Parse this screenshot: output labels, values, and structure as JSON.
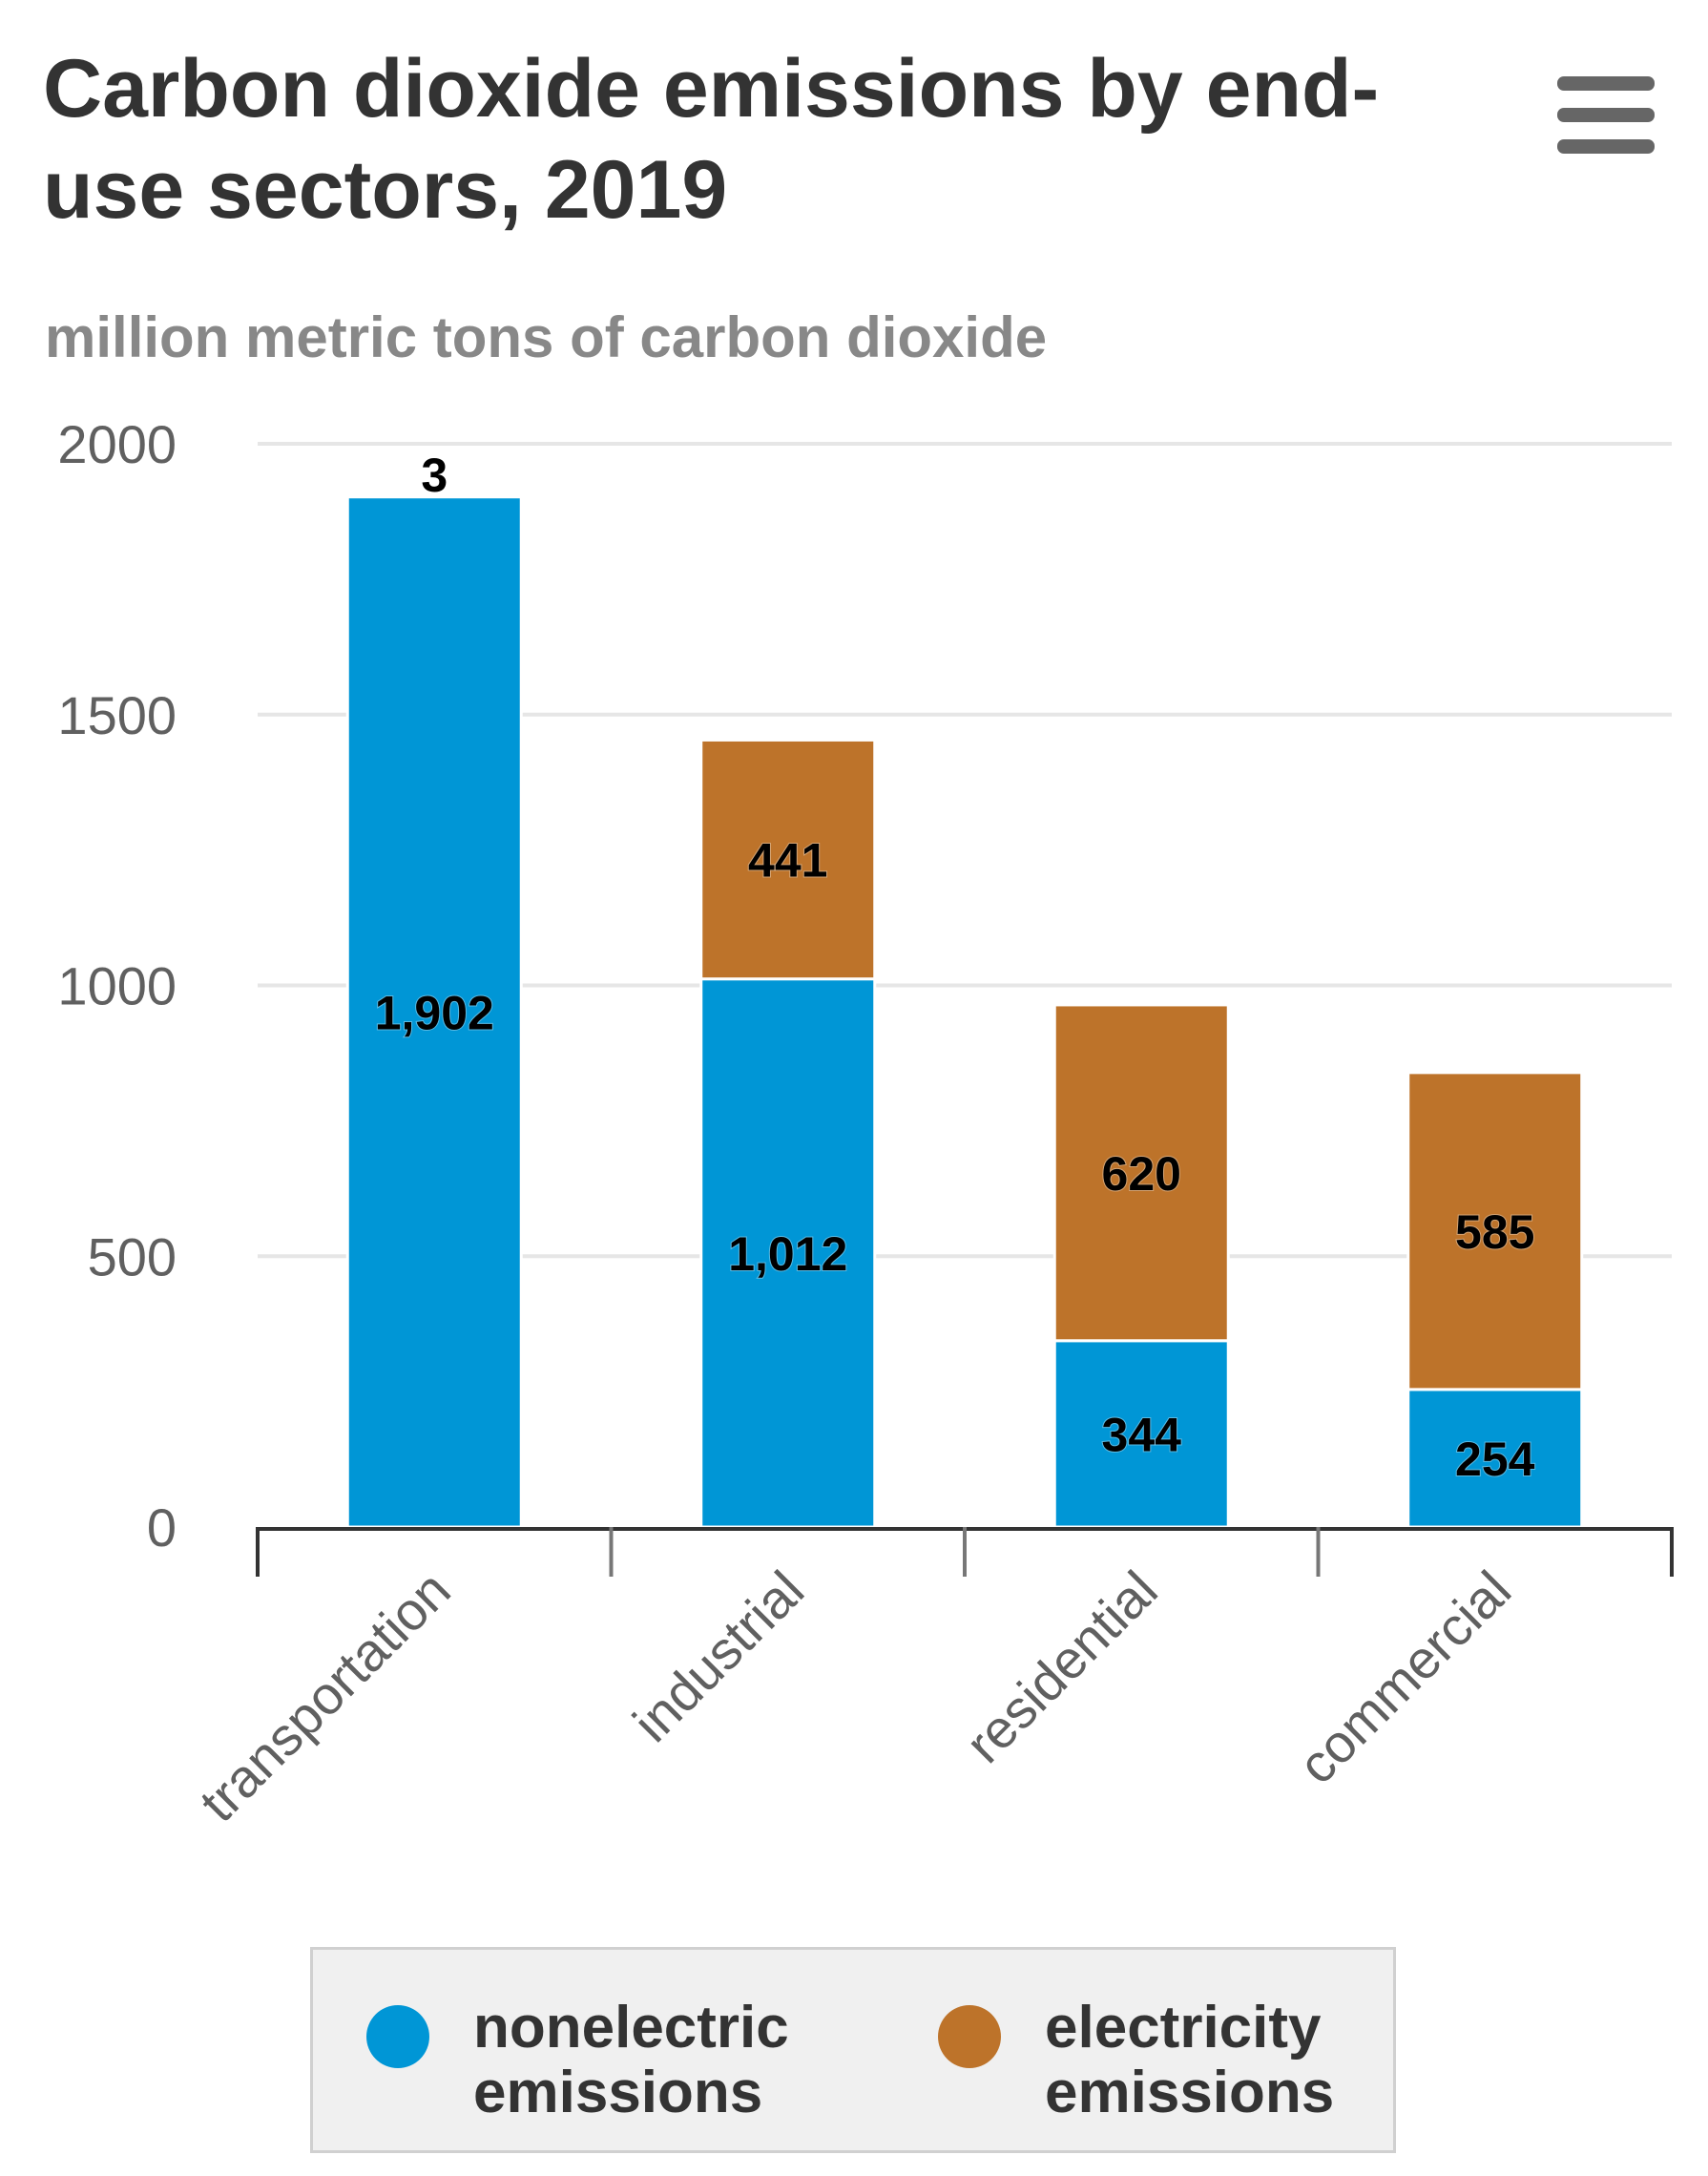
{
  "chart_data": {
    "type": "bar",
    "stacked": true,
    "title": "Carbon dioxide emissions by end-use sectors, 2019",
    "subtitle": "million metric tons of carbon dioxide",
    "categories": [
      "transportation",
      "industrial",
      "residential",
      "commercial"
    ],
    "series": [
      {
        "name": "nonelectric emissions",
        "color": "#0096d6",
        "values": [
          1902,
          1012,
          344,
          254
        ],
        "labels": [
          "1,902",
          "1,012",
          "344",
          "254"
        ]
      },
      {
        "name": "electricity emissions",
        "color": "#bd732a",
        "values": [
          3,
          441,
          620,
          585
        ],
        "labels": [
          "3",
          "441",
          "620",
          "585"
        ]
      }
    ],
    "y_ticks": [
      0,
      500,
      1000,
      1500,
      2000
    ],
    "y_tick_labels": [
      "0",
      "500",
      "1000",
      "1500",
      "2000"
    ],
    "ylim": [
      0,
      2000
    ],
    "xlabel": "",
    "ylabel": "",
    "grid": true,
    "legend": "bottom-center"
  },
  "menu": {
    "icon": "hamburger-menu-icon"
  }
}
